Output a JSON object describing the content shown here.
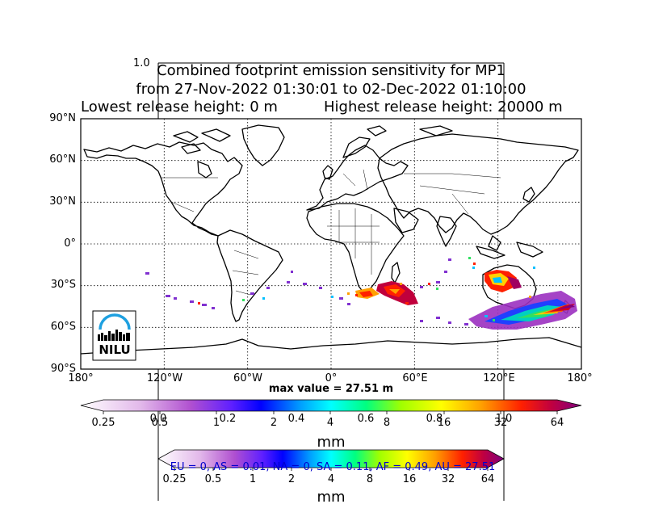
{
  "title": {
    "line1": "Combined footprint emission sensitivity for MP1",
    "line2": "from 27-Nov-2022 01:30:01 to 02-Dec-2022 01:10:00",
    "line3_left": "Lowest release height: 0 m",
    "line3_right": "Highest release height: 20000 m"
  },
  "ghost_axis": {
    "top_label": "1.0",
    "ticks": [
      "0.0",
      "0.2",
      "0.4",
      "0.6",
      "0.8",
      "1.0"
    ]
  },
  "map": {
    "lat_ticks": [
      "90°N",
      "60°N",
      "30°N",
      "0°",
      "30°S",
      "60°S",
      "90°S"
    ],
    "lon_ticks": [
      "180°",
      "120°W",
      "60°W",
      "0°",
      "60°E",
      "120°E",
      "180°"
    ],
    "max_value_label": "max value = 27.51 m",
    "logo_text": "NILU"
  },
  "colorbar1": {
    "ticks": [
      "0.25",
      "0.5",
      "1",
      "2",
      "4",
      "8",
      "16",
      "32",
      "64"
    ],
    "unit_label": "mm"
  },
  "colorbar2": {
    "ticks": [
      "0.25",
      "0.5",
      "1",
      "2",
      "4",
      "8",
      "16",
      "32",
      "64"
    ],
    "unit_label": "mm"
  },
  "region_summary": "EU = 0,  AS = 0.01,  NA = 0,  SA = 0.11,  AF = 0.49,  AU = 27.51",
  "colors": {
    "scale": [
      "#ffffff",
      "#d6a8e0",
      "#b050d0",
      "#2020ff",
      "#00c0ff",
      "#00ff80",
      "#ffff00",
      "#ffa000",
      "#ff0000",
      "#a00060",
      "#800080"
    ],
    "summary_text": "#0000cc"
  }
}
